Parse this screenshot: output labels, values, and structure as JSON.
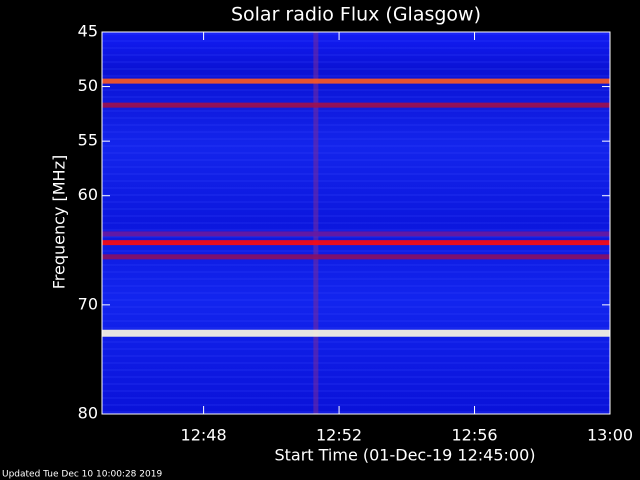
{
  "chart_data": {
    "type": "spectrogram",
    "title": "Solar radio Flux (Glasgow)",
    "x_label": "Start Time (01-Dec-19 12:45:00)",
    "y_label": "Frequency [MHz]",
    "footer": "Updated Tue Dec 10 10:00:28 2019",
    "xlim": [
      45,
      60
    ],
    "xticks": [
      {
        "value": 48,
        "label": "12:48"
      },
      {
        "value": 52,
        "label": "12:52"
      },
      {
        "value": 56,
        "label": "12:56"
      },
      {
        "value": 60,
        "label": "13:00"
      }
    ],
    "ylim": [
      45,
      80
    ],
    "yticks": [
      45,
      50,
      55,
      60,
      70,
      80
    ],
    "y_inverted": true,
    "background_color": "#0a14e6",
    "bands": [
      {
        "frequency": 49.5,
        "color": "#ff5a1e"
      },
      {
        "frequency": 51.7,
        "color": "#a0104a"
      },
      {
        "frequency": 63.5,
        "color": "#6a1aa0"
      },
      {
        "frequency": 64.3,
        "color": "#ff0a0a"
      },
      {
        "frequency": 65.6,
        "color": "#8a1060"
      },
      {
        "frequency": 72.6,
        "color": "#fffbe0"
      }
    ],
    "bursts": [
      {
        "time": 51.3,
        "color": "#7a2a9a"
      }
    ]
  }
}
